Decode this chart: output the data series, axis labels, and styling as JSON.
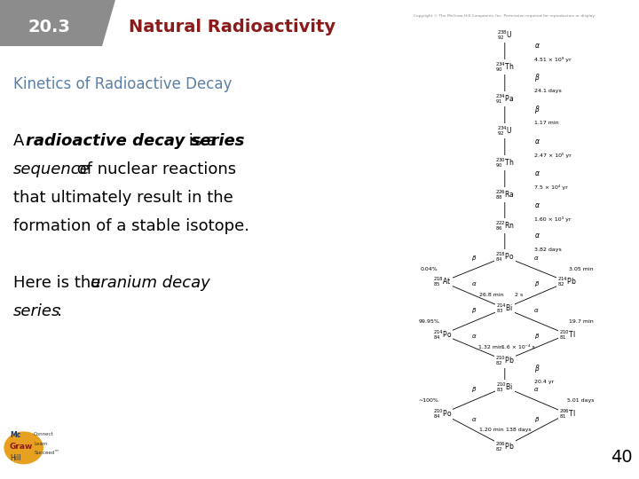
{
  "title_number": "20.3",
  "title_text": "Natural Radioactivity",
  "subtitle": "Kinetics of Radioactive Decay",
  "page_number": "40",
  "background_color": "#ffffff",
  "title_bg_color": "#8c8c8c",
  "title_number_color": "#ffffff",
  "title_text_color": "#8b1a1a",
  "subtitle_color": "#5b7fa6",
  "body_color": "#000000",
  "copyright_text": "Copyright © The McGraw-Hill Companies, Inc. Permission required for reproduction or display.",
  "title_fontsize": 14,
  "title_number_fontsize": 14,
  "subtitle_fontsize": 12,
  "body_fontsize": 13
}
